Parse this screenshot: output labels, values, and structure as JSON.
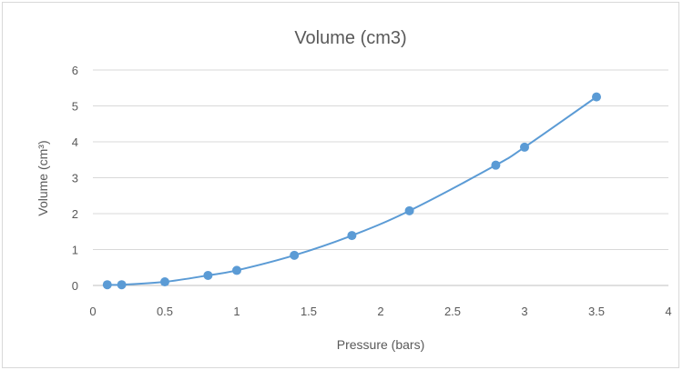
{
  "chart_data": {
    "type": "scatter",
    "title": "Volume (cm3)",
    "xlabel": "Pressure (bars)",
    "ylabel": "Volume (cm³)",
    "xlim": [
      0,
      4
    ],
    "ylim": [
      0,
      6
    ],
    "x_ticks": [
      "0",
      "0.5",
      "1",
      "1.5",
      "2",
      "2.5",
      "3",
      "3.5",
      "4"
    ],
    "y_ticks": [
      "0",
      "1",
      "2",
      "3",
      "4",
      "5",
      "6"
    ],
    "grid": true,
    "legend": "none",
    "smooth_line": true,
    "color": "#5b9bd5",
    "series": [
      {
        "x": [
          0.1,
          0.2,
          0.5,
          0.8,
          1.0,
          1.4,
          1.8,
          2.2,
          2.8,
          3.0,
          3.5
        ],
        "y": [
          0.02,
          0.02,
          0.1,
          0.28,
          0.42,
          0.84,
          1.39,
          2.08,
          3.35,
          3.85,
          5.25
        ]
      }
    ]
  }
}
